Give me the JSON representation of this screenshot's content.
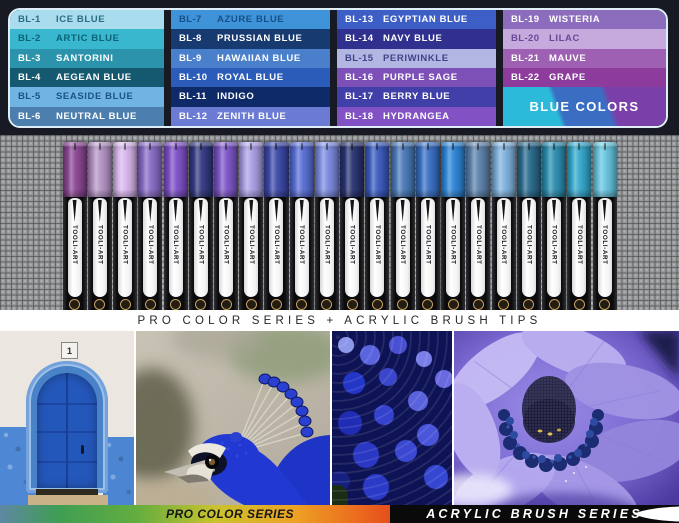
{
  "chart": {
    "columns": [
      {
        "rows": [
          {
            "code": "BL-1",
            "name": "ICE BLUE",
            "bg": "#a9dcec",
            "fg": "#2a6d85"
          },
          {
            "code": "BL-2",
            "name": "ARTIC BLUE",
            "bg": "#39b7cf",
            "fg": "#0c6377"
          },
          {
            "code": "BL-3",
            "name": "SANTORINI",
            "bg": "#2b93ac",
            "fg": "#ffffff"
          },
          {
            "code": "BL-4",
            "name": "AEGEAN BLUE",
            "bg": "#14596f",
            "fg": "#ffffff"
          },
          {
            "code": "BL-5",
            "name": "SEASIDE BLUE",
            "bg": "#70b4e4",
            "fg": "#1c5287"
          },
          {
            "code": "BL-6",
            "name": "NEUTRAL BLUE",
            "bg": "#4c7fae",
            "fg": "#ffffff"
          }
        ]
      },
      {
        "rows": [
          {
            "code": "BL-7",
            "name": "AZURE BLUE",
            "bg": "#3f93d8",
            "fg": "#155089"
          },
          {
            "code": "BL-8",
            "name": "PRUSSIAN BLUE",
            "bg": "#173a70",
            "fg": "#ffffff"
          },
          {
            "code": "BL-9",
            "name": "HAWAIIAN BLUE",
            "bg": "#4a7fcb",
            "fg": "#ffffff"
          },
          {
            "code": "BL-10",
            "name": "ROYAL BLUE",
            "bg": "#2c5cba",
            "fg": "#ffffff"
          },
          {
            "code": "BL-11",
            "name": "INDIGO",
            "bg": "#0e2a68",
            "fg": "#ffffff"
          },
          {
            "code": "BL-12",
            "name": "ZENITH BLUE",
            "bg": "#6b7ad2",
            "fg": "#ffffff"
          }
        ]
      },
      {
        "rows": [
          {
            "code": "BL-13",
            "name": "EGYPTIAN BLUE",
            "bg": "#3d5fc5",
            "fg": "#ffffff"
          },
          {
            "code": "BL-14",
            "name": "NAVY BLUE",
            "bg": "#30308e",
            "fg": "#ffffff"
          },
          {
            "code": "BL-15",
            "name": "PERIWINKLE",
            "bg": "#b2b6e2",
            "fg": "#42428a"
          },
          {
            "code": "BL-16",
            "name": "PURPLE SAGE",
            "bg": "#7d50b8",
            "fg": "#ffffff"
          },
          {
            "code": "BL-17",
            "name": "BERRY BLUE",
            "bg": "#4040a8",
            "fg": "#ffffff"
          },
          {
            "code": "BL-18",
            "name": "HYDRANGEA",
            "bg": "#8252c4",
            "fg": "#ffffff"
          }
        ]
      },
      {
        "rows": [
          {
            "code": "BL-19",
            "name": "WISTERIA",
            "bg": "#8c6cbc",
            "fg": "#ffffff"
          },
          {
            "code": "BL-20",
            "name": "LILAC",
            "bg": "#c6aade",
            "fg": "#6b4795"
          },
          {
            "code": "BL-21",
            "name": "MAUVE",
            "bg": "#9e60b2",
            "fg": "#ffffff"
          },
          {
            "code": "BL-22",
            "name": "GRAPE",
            "bg": "#8d3c9e",
            "fg": "#ffffff"
          }
        ]
      }
    ],
    "badge": {
      "label": "BLUE COLORS",
      "colors": {
        "cyan": "#2bbad9",
        "blue": "#3a6ec2",
        "purple": "#7b3fa9"
      }
    }
  },
  "markers": {
    "brand": "TOOLI-ART",
    "cap_colors": [
      "#8b4794",
      "#b694c6",
      "#d9b7ee",
      "#8a6cc6",
      "#7e50c8",
      "#343a82",
      "#7d55c7",
      "#aca0e6",
      "#3c49a8",
      "#5a6fd6",
      "#7c8ce0",
      "#2b3472",
      "#3b5cc0",
      "#4a7ab8",
      "#3a70c4",
      "#2e86d8",
      "#5e83ad",
      "#7fb2dd",
      "#2a6a8c",
      "#2d8fb0",
      "#35a8cc",
      "#66c5de"
    ],
    "logo_ring_color": "#c9a35f"
  },
  "series_band": {
    "text": "PRO COLOR SERIES + ACRYLIC BRUSH TIPS"
  },
  "photos": {
    "door_number": "1",
    "items": [
      "blue-door",
      "peacock",
      "hydrangea",
      "anemone-flower"
    ]
  },
  "footer": {
    "pro_label": "PRO COLOR SERIES",
    "acrylic_label": "ACRYLIC BRUSH SERIES"
  }
}
